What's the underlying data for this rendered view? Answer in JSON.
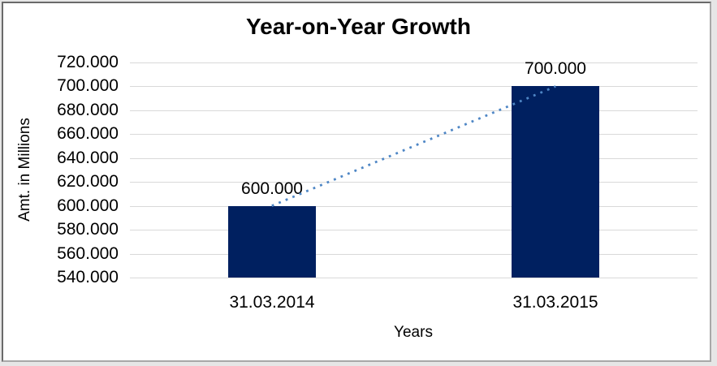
{
  "chart_data": {
    "type": "bar",
    "title": "Year-on-Year Growth",
    "xlabel": "Years",
    "ylabel": "Amt. in Millions",
    "categories": [
      "31.03.2014",
      "31.03.2015"
    ],
    "values": [
      600000,
      700000
    ],
    "value_labels": [
      "600.000",
      "700.000"
    ],
    "ylim": [
      540000,
      720000
    ],
    "ytick_step": 20000,
    "yticks": {
      "values": [
        540000,
        560000,
        580000,
        600000,
        620000,
        640000,
        660000,
        680000,
        700000,
        720000
      ],
      "labels": [
        "540.000",
        "560.000",
        "580.000",
        "600.000",
        "620.000",
        "640.000",
        "660.000",
        "680.000",
        "700.000",
        "720.000"
      ]
    },
    "grid": true,
    "legend": "none",
    "colors": {
      "bar": "#002060",
      "gridline": "#d9d9d9",
      "text": "#000000",
      "trendline": "#4e86c5",
      "background": "#ffffff"
    },
    "trendline": {
      "type": "linear",
      "style": "dotted",
      "color": "#4e86c5",
      "from": {
        "category": "31.03.2014",
        "value": 600000
      },
      "to": {
        "category": "31.03.2015",
        "value": 700000
      }
    }
  }
}
